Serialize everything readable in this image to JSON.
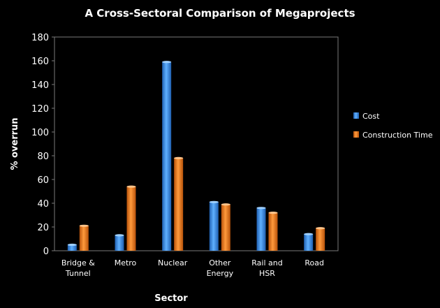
{
  "chart_data": {
    "type": "bar",
    "title": "A Cross-Sectoral Comparison of Megaprojects",
    "xlabel": "Sector",
    "ylabel": "% overrun",
    "ylim": [
      0,
      180
    ],
    "yticks": [
      0,
      20,
      40,
      60,
      80,
      100,
      120,
      140,
      160,
      180
    ],
    "categories": [
      [
        "Bridge &",
        "Tunnel"
      ],
      [
        "Metro"
      ],
      [
        "Nuclear"
      ],
      [
        "Other",
        "Energy"
      ],
      [
        "Rail and",
        "HSR"
      ],
      [
        "Road"
      ]
    ],
    "series": [
      {
        "name": "Cost",
        "color": "#3d8fe0",
        "values": [
          5,
          13,
          159,
          41,
          36,
          14
        ]
      },
      {
        "name": "Construction Time",
        "color": "#f07a1a",
        "values": [
          21,
          54,
          78,
          39,
          32,
          19
        ]
      }
    ],
    "legend_position": "right",
    "grid": false
  }
}
